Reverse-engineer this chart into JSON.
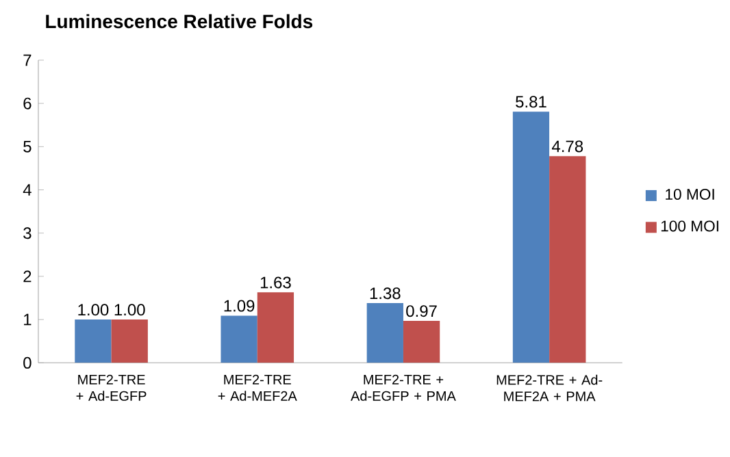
{
  "chart_data": {
    "type": "bar",
    "title": "Luminescence Relative Folds",
    "categories": [
      "MEF2-TRE + Ad-EGFP",
      "MEF2-TRE + Ad-MEF2A",
      "MEF2-TRE + Ad-EGFP + PMA",
      "MEF2-TRE + Ad-MEF2A + PMA"
    ],
    "series": [
      {
        "name": "10 MOI",
        "color": "#4f81bd",
        "values": [
          1.0,
          1.09,
          1.38,
          5.81
        ],
        "value_labels": [
          "1.00",
          "1.09",
          "1.38",
          "5.81"
        ]
      },
      {
        "name": "100 MOI",
        "color": "#c0504d",
        "values": [
          1.0,
          1.63,
          0.97,
          4.78
        ],
        "value_labels": [
          "1.00",
          "1.63",
          "0.97",
          "4.78"
        ]
      }
    ],
    "ylim": [
      0,
      7
    ],
    "yticks": [
      0,
      1,
      2,
      3,
      4,
      5,
      6,
      7
    ],
    "grid": false,
    "legend": "right"
  }
}
